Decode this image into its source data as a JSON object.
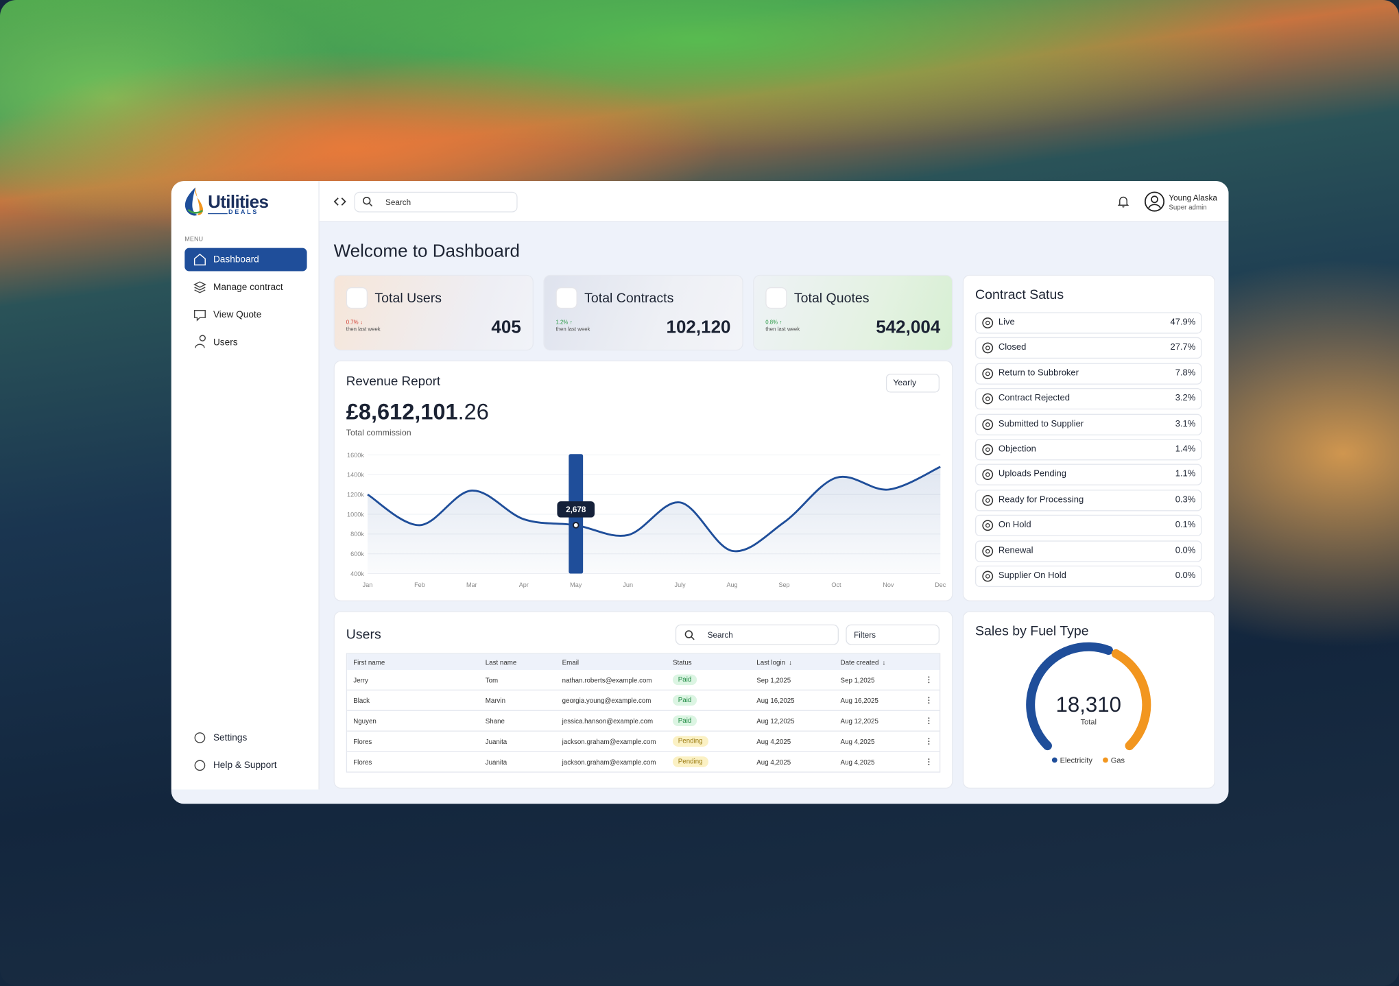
{
  "brand": {
    "name": "Utilities",
    "tagline": "DEALS"
  },
  "sidebar": {
    "menu_label": "MENU",
    "items": [
      "Dashboard",
      "Manage contract",
      "View Quote",
      "Users"
    ],
    "footer_items": [
      "Settings",
      "Help & Support"
    ]
  },
  "header": {
    "search_placeholder": "Search",
    "user_name": "Young Alaska",
    "user_role": "Super admin"
  },
  "page_title": "Welcome to Dashboard",
  "stats": [
    {
      "title": "Total Users",
      "value": "405",
      "change": "0.7%",
      "trend": "down",
      "note": "then last week"
    },
    {
      "title": "Total Contracts",
      "value": "102,120",
      "change": "1.2%",
      "trend": "up",
      "note": "then last week"
    },
    {
      "title": "Total Quotes",
      "value": "542,004",
      "change": "0.8%",
      "trend": "up",
      "note": "then last week"
    }
  ],
  "revenue": {
    "title": "Revenue Report",
    "period": "Yearly",
    "total_main": "£8,612,101",
    "total_decimal": ".26",
    "total_label": "Total commission",
    "tooltip": "2,678",
    "chart_data": {
      "type": "line",
      "categories": [
        "Jan",
        "Feb",
        "Mar",
        "Apr",
        "May",
        "Jun",
        "July",
        "Aug",
        "Sep",
        "Oct",
        "Nov",
        "Dec"
      ],
      "values": [
        1200,
        890,
        1240,
        950,
        890,
        790,
        1120,
        630,
        920,
        1370,
        1250,
        1480
      ],
      "color": "#1f4e9a",
      "ylim": [
        400,
        1600
      ],
      "yticks": [
        {
          "value": 400,
          "label": "400k"
        },
        {
          "value": 600,
          "label": "600k"
        },
        {
          "value": 800,
          "label": "800k"
        },
        {
          "value": 1000,
          "label": "1000k"
        },
        {
          "value": 1200,
          "label": "1200k"
        },
        {
          "value": 1400,
          "label": "1400k"
        },
        {
          "value": 1600,
          "label": "1600k"
        }
      ],
      "grid": true
    }
  },
  "contract_status": {
    "title": "Contract Satus",
    "rows": [
      {
        "label": "Live",
        "value": "47.9%"
      },
      {
        "label": "Closed",
        "value": "27.7%"
      },
      {
        "label": "Return to Subbroker",
        "value": "7.8%"
      },
      {
        "label": "Contract Rejected",
        "value": "3.2%"
      },
      {
        "label": "Submitted to Supplier",
        "value": "3.1%"
      },
      {
        "label": "Objection",
        "value": "1.4%"
      },
      {
        "label": "Uploads Pending",
        "value": "1.1%"
      },
      {
        "label": "Ready for Processing",
        "value": "0.3%"
      },
      {
        "label": "On Hold",
        "value": "0.1%"
      },
      {
        "label": "Renewal",
        "value": "0.0%"
      },
      {
        "label": "Supplier On Hold",
        "value": "0.0%"
      }
    ]
  },
  "users": {
    "title": "Users",
    "search_placeholder": "Search",
    "filter_label": "Filters",
    "columns": [
      "First name",
      "Last name",
      "Email",
      "Status",
      "Last login",
      "Date created"
    ],
    "rows": [
      [
        "Jerry",
        "Tom",
        "nathan.roberts@example.com",
        "Paid",
        "Sep 1,2025",
        "Sep 1,2025"
      ],
      [
        "Black",
        "Marvin",
        "georgia.young@example.com",
        "Paid",
        "Aug 16,2025",
        "Aug 16,2025"
      ],
      [
        "Nguyen",
        "Shane",
        "jessica.hanson@example.com",
        "Paid",
        "Aug 12,2025",
        "Aug 12,2025"
      ],
      [
        "Flores",
        "Juanita",
        "jackson.graham@example.com",
        "Pending",
        "Aug 4,2025",
        "Aug 4,2025"
      ],
      [
        "Flores",
        "Juanita",
        "jackson.graham@example.com",
        "Pending",
        "Aug 4,2025",
        "Aug 4,2025"
      ]
    ],
    "badge_colors": {
      "Paid": {
        "bg": "#dcf5e3",
        "fg": "#1f8a42"
      },
      "Pending": {
        "bg": "#fbf1c4",
        "fg": "#9a7a10"
      }
    }
  },
  "fuel": {
    "title": "Sales by Fuel Type",
    "total": "18,310",
    "total_label": "Total",
    "chart_data": {
      "type": "gauge",
      "categories": [
        "Electricity",
        "Gas"
      ],
      "values": [
        10800,
        7510
      ],
      "colors": [
        "#1f4e9a",
        "#f2961f"
      ]
    }
  }
}
